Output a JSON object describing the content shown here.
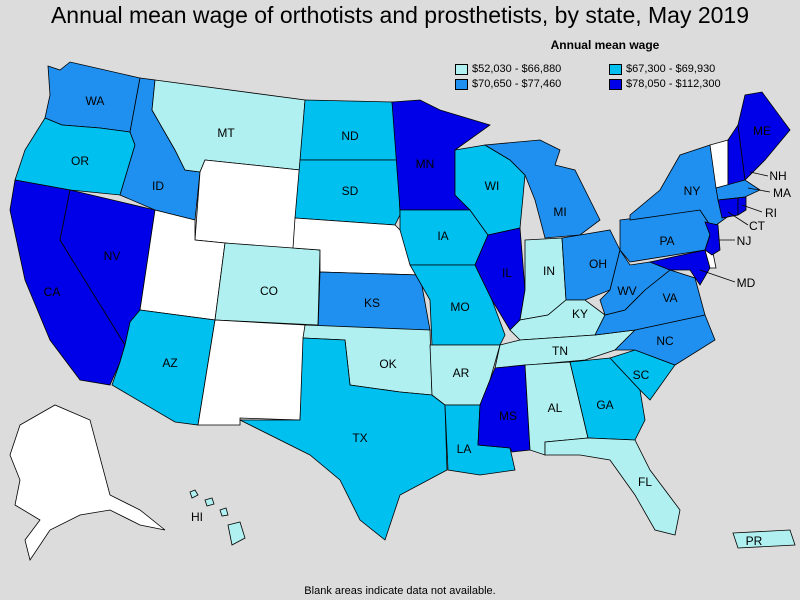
{
  "title": "Annual mean wage of orthotists and prosthetists, by state, May 2019",
  "legend": {
    "title": "Annual mean wage",
    "items": [
      {
        "label": "$52,030 - $66,880",
        "color": "#b0f0f0"
      },
      {
        "label": "$67,300 - $69,930",
        "color": "#00c0f0"
      },
      {
        "label": "$70,650 - $77,460",
        "color": "#2090f0"
      },
      {
        "label": "$78,050 - $112,300",
        "color": "#0000e8"
      }
    ]
  },
  "footnote": "Blank areas indicate data not available.",
  "colors": {
    "nodata": "#ffffff",
    "background": "#dcdcdc"
  },
  "states": {
    "WA": {
      "label": "WA",
      "tier": 2
    },
    "OR": {
      "label": "OR",
      "tier": 1
    },
    "CA": {
      "label": "CA",
      "tier": 3
    },
    "NV": {
      "label": "NV",
      "tier": 3
    },
    "ID": {
      "label": "ID",
      "tier": 2
    },
    "MT": {
      "label": "MT",
      "tier": 0
    },
    "WY": {
      "label": "",
      "tier": -1
    },
    "UT": {
      "label": "",
      "tier": -1
    },
    "AZ": {
      "label": "AZ",
      "tier": 1
    },
    "CO": {
      "label": "CO",
      "tier": 0
    },
    "NM": {
      "label": "",
      "tier": -1
    },
    "ND": {
      "label": "ND",
      "tier": 1
    },
    "SD": {
      "label": "SD",
      "tier": 1
    },
    "NE": {
      "label": "",
      "tier": -1
    },
    "KS": {
      "label": "KS",
      "tier": 2
    },
    "OK": {
      "label": "OK",
      "tier": 0
    },
    "TX": {
      "label": "TX",
      "tier": 1
    },
    "MN": {
      "label": "MN",
      "tier": 3
    },
    "IA": {
      "label": "IA",
      "tier": 1
    },
    "MO": {
      "label": "MO",
      "tier": 1
    },
    "AR": {
      "label": "AR",
      "tier": 0
    },
    "LA": {
      "label": "LA",
      "tier": 1
    },
    "WI": {
      "label": "WI",
      "tier": 1
    },
    "IL": {
      "label": "IL",
      "tier": 3
    },
    "MI": {
      "label": "MI",
      "tier": 2
    },
    "IN": {
      "label": "IN",
      "tier": 0
    },
    "OH": {
      "label": "OH",
      "tier": 2
    },
    "KY": {
      "label": "KY",
      "tier": 0
    },
    "TN": {
      "label": "TN",
      "tier": 0
    },
    "MS": {
      "label": "MS",
      "tier": 3
    },
    "AL": {
      "label": "AL",
      "tier": 0
    },
    "GA": {
      "label": "GA",
      "tier": 1
    },
    "FL": {
      "label": "FL",
      "tier": 0
    },
    "SC": {
      "label": "SC",
      "tier": 1
    },
    "NC": {
      "label": "NC",
      "tier": 2
    },
    "VA": {
      "label": "VA",
      "tier": 2
    },
    "WV": {
      "label": "WV",
      "tier": 2
    },
    "PA": {
      "label": "PA",
      "tier": 2
    },
    "NY": {
      "label": "NY",
      "tier": 2
    },
    "VT": {
      "label": "",
      "tier": -1
    },
    "NH": {
      "label": "NH",
      "tier": 3
    },
    "ME": {
      "label": "ME",
      "tier": 3
    },
    "MA": {
      "label": "MA",
      "tier": 2
    },
    "RI": {
      "label": "RI",
      "tier": 3
    },
    "CT": {
      "label": "CT",
      "tier": 3
    },
    "NJ": {
      "label": "NJ",
      "tier": 3
    },
    "DE": {
      "label": "",
      "tier": -1
    },
    "MD": {
      "label": "MD",
      "tier": 3
    },
    "AK": {
      "label": "",
      "tier": -1
    },
    "HI": {
      "label": "HI",
      "tier": 0
    },
    "PR": {
      "label": "PR",
      "tier": 0
    }
  }
}
